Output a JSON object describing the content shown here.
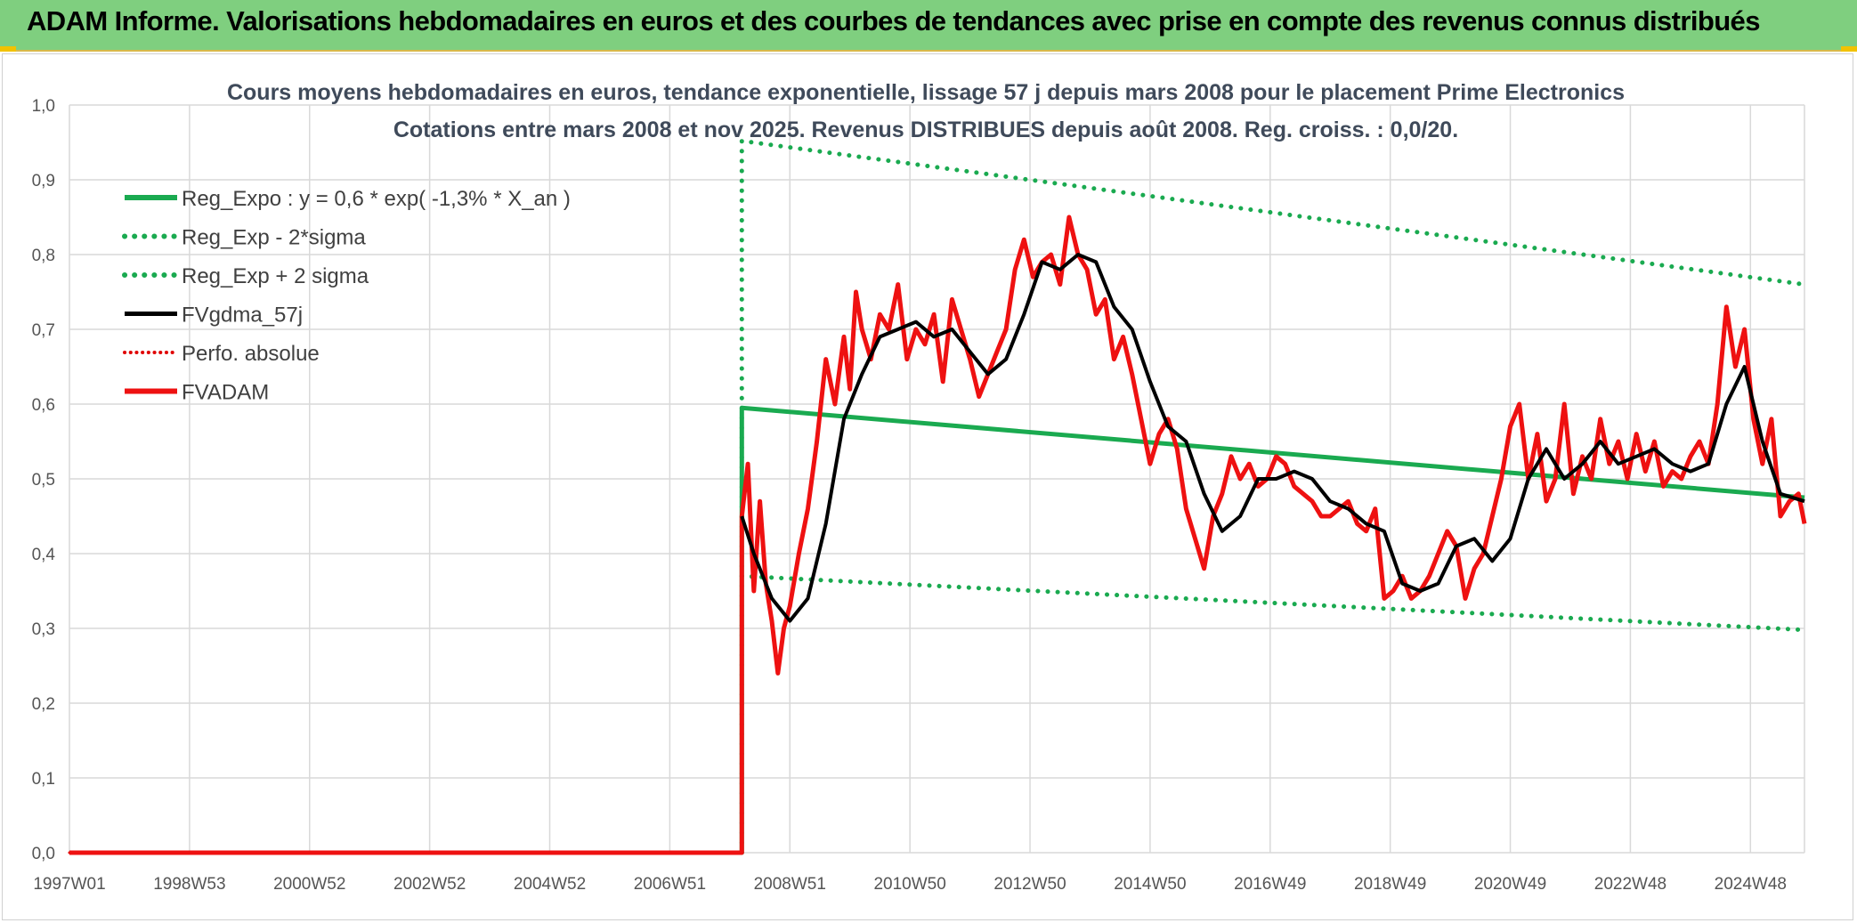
{
  "header": {
    "title": "ADAM Informe. Valorisations hebdomadaires en euros et des courbes de tendances avec prise en compte des revenus connus distribués"
  },
  "colors": {
    "banner": "#7fcf7f",
    "reg_expo": "#1aaa50",
    "reg_band": "#1aaa50",
    "fvgdma": "#000000",
    "perfo": "#e00000",
    "fvadam": "#ee1111",
    "grid": "#d9d9d9"
  },
  "chart_data": {
    "type": "line",
    "title": "Cours moyens hebdomadaires en euros, tendance exponentielle, lissage 57 j depuis mars 2008 pour le placement Prime Electronics",
    "subtitle": "Cotations entre mars 2008 et nov 2025. Revenus DISTRIBUES depuis août 2008. Reg. croiss. : 0,0/20.",
    "grid": true,
    "legend_placement": "top-left",
    "ylim": [
      0,
      1
    ],
    "yticks": [
      "0,0",
      "0,1",
      "0,2",
      "0,3",
      "0,4",
      "0,5",
      "0,6",
      "0,7",
      "0,8",
      "0,9",
      "1,0"
    ],
    "xlim": [
      1997.0,
      2025.9
    ],
    "xticks": [
      {
        "label": "1997W01",
        "x": 1997.0
      },
      {
        "label": "1998W53",
        "x": 1999.0
      },
      {
        "label": "2000W52",
        "x": 2001.0
      },
      {
        "label": "2002W52",
        "x": 2003.0
      },
      {
        "label": "2004W52",
        "x": 2005.0
      },
      {
        "label": "2006W51",
        "x": 2007.0
      },
      {
        "label": "2008W51",
        "x": 2009.0
      },
      {
        "label": "2010W50",
        "x": 2011.0
      },
      {
        "label": "2012W50",
        "x": 2013.0
      },
      {
        "label": "2014W50",
        "x": 2015.0
      },
      {
        "label": "2016W49",
        "x": 2017.0
      },
      {
        "label": "2018W49",
        "x": 2019.0
      },
      {
        "label": "2020W49",
        "x": 2021.0
      },
      {
        "label": "2022W48",
        "x": 2023.0
      },
      {
        "label": "2024W48",
        "x": 2025.0
      }
    ],
    "series": [
      {
        "name": "Reg_Expo : y = 0,6 * exp( -1,3% *  X_an )",
        "style": "solid",
        "color": "#1aaa50",
        "width": 5,
        "x": [
          1997.0,
          2008.2,
          2008.2,
          2025.9
        ],
        "y": [
          0.0,
          0.0,
          0.595,
          0.475
        ]
      },
      {
        "name": "Reg_Exp - 2*sigma",
        "style": "dotted",
        "color": "#1aaa50",
        "width": 5,
        "x": [
          2008.2,
          2025.9
        ],
        "y": [
          0.37,
          0.298
        ]
      },
      {
        "name": "Reg_Exp + 2 sigma",
        "style": "dotted",
        "color": "#1aaa50",
        "width": 5,
        "x": [
          2008.2,
          2008.2,
          2025.9
        ],
        "y": [
          0.0,
          0.952,
          0.76
        ]
      },
      {
        "name": "FVgdma_57j",
        "style": "solid",
        "color": "#000000",
        "width": 4,
        "x": [
          2008.2,
          2008.4,
          2008.7,
          2009.0,
          2009.3,
          2009.6,
          2009.9,
          2010.2,
          2010.5,
          2010.8,
          2011.1,
          2011.4,
          2011.7,
          2012.0,
          2012.3,
          2012.6,
          2012.9,
          2013.2,
          2013.5,
          2013.8,
          2014.1,
          2014.4,
          2014.7,
          2015.0,
          2015.3,
          2015.6,
          2015.9,
          2016.2,
          2016.5,
          2016.8,
          2017.1,
          2017.4,
          2017.7,
          2018.0,
          2018.3,
          2018.6,
          2018.9,
          2019.2,
          2019.5,
          2019.8,
          2020.1,
          2020.4,
          2020.7,
          2021.0,
          2021.3,
          2021.6,
          2021.9,
          2022.2,
          2022.5,
          2022.8,
          2023.1,
          2023.4,
          2023.7,
          2024.0,
          2024.3,
          2024.6,
          2024.9,
          2025.2,
          2025.5,
          2025.9
        ],
        "y": [
          0.45,
          0.4,
          0.34,
          0.31,
          0.34,
          0.44,
          0.58,
          0.64,
          0.69,
          0.7,
          0.71,
          0.69,
          0.7,
          0.67,
          0.64,
          0.66,
          0.72,
          0.79,
          0.78,
          0.8,
          0.79,
          0.73,
          0.7,
          0.63,
          0.57,
          0.55,
          0.48,
          0.43,
          0.45,
          0.5,
          0.5,
          0.51,
          0.5,
          0.47,
          0.46,
          0.44,
          0.43,
          0.36,
          0.35,
          0.36,
          0.41,
          0.42,
          0.39,
          0.42,
          0.5,
          0.54,
          0.5,
          0.52,
          0.55,
          0.52,
          0.53,
          0.54,
          0.52,
          0.51,
          0.52,
          0.6,
          0.65,
          0.55,
          0.48,
          0.47
        ]
      },
      {
        "name": "Perfo. absolue",
        "style": "dotted",
        "color": "#e00000",
        "width": 3,
        "x": [
          1997.0,
          2008.2
        ],
        "y": [
          0.0,
          0.0
        ]
      },
      {
        "name": "FVADAM",
        "style": "solid",
        "color": "#ee1111",
        "width": 5,
        "x": [
          1997.0,
          2008.2,
          2008.2,
          2008.3,
          2008.4,
          2008.5,
          2008.6,
          2008.7,
          2008.8,
          2008.9,
          2009.0,
          2009.15,
          2009.3,
          2009.45,
          2009.6,
          2009.75,
          2009.9,
          2010.0,
          2010.1,
          2010.2,
          2010.35,
          2010.5,
          2010.65,
          2010.8,
          2010.95,
          2011.1,
          2011.25,
          2011.4,
          2011.55,
          2011.7,
          2011.85,
          2012.0,
          2012.15,
          2012.3,
          2012.45,
          2012.6,
          2012.75,
          2012.9,
          2013.05,
          2013.2,
          2013.35,
          2013.5,
          2013.65,
          2013.8,
          2013.95,
          2014.1,
          2014.25,
          2014.4,
          2014.55,
          2014.7,
          2014.85,
          2015.0,
          2015.15,
          2015.3,
          2015.45,
          2015.6,
          2015.75,
          2015.9,
          2016.05,
          2016.2,
          2016.35,
          2016.5,
          2016.65,
          2016.8,
          2016.95,
          2017.1,
          2017.25,
          2017.4,
          2017.55,
          2017.7,
          2017.85,
          2018.0,
          2018.15,
          2018.3,
          2018.45,
          2018.6,
          2018.75,
          2018.9,
          2019.05,
          2019.2,
          2019.35,
          2019.5,
          2019.65,
          2019.8,
          2019.95,
          2020.1,
          2020.25,
          2020.4,
          2020.55,
          2020.7,
          2020.85,
          2021.0,
          2021.15,
          2021.3,
          2021.45,
          2021.6,
          2021.75,
          2021.9,
          2022.05,
          2022.2,
          2022.35,
          2022.5,
          2022.65,
          2022.8,
          2022.95,
          2023.1,
          2023.25,
          2023.4,
          2023.55,
          2023.7,
          2023.85,
          2024.0,
          2024.15,
          2024.3,
          2024.45,
          2024.6,
          2024.75,
          2024.9,
          2025.05,
          2025.2,
          2025.35,
          2025.5,
          2025.65,
          2025.8,
          2025.9
        ],
        "y": [
          0.0,
          0.0,
          0.45,
          0.52,
          0.35,
          0.47,
          0.36,
          0.31,
          0.24,
          0.3,
          0.33,
          0.4,
          0.46,
          0.55,
          0.66,
          0.6,
          0.69,
          0.62,
          0.75,
          0.7,
          0.66,
          0.72,
          0.7,
          0.76,
          0.66,
          0.7,
          0.68,
          0.72,
          0.63,
          0.74,
          0.7,
          0.66,
          0.61,
          0.64,
          0.67,
          0.7,
          0.78,
          0.82,
          0.77,
          0.79,
          0.8,
          0.76,
          0.85,
          0.8,
          0.78,
          0.72,
          0.74,
          0.66,
          0.69,
          0.64,
          0.58,
          0.52,
          0.56,
          0.58,
          0.54,
          0.46,
          0.42,
          0.38,
          0.45,
          0.48,
          0.53,
          0.5,
          0.52,
          0.49,
          0.5,
          0.53,
          0.52,
          0.49,
          0.48,
          0.47,
          0.45,
          0.45,
          0.46,
          0.47,
          0.44,
          0.43,
          0.46,
          0.34,
          0.35,
          0.37,
          0.34,
          0.35,
          0.37,
          0.4,
          0.43,
          0.41,
          0.34,
          0.38,
          0.4,
          0.45,
          0.5,
          0.57,
          0.6,
          0.5,
          0.56,
          0.47,
          0.5,
          0.6,
          0.48,
          0.53,
          0.5,
          0.58,
          0.52,
          0.55,
          0.5,
          0.56,
          0.51,
          0.55,
          0.49,
          0.51,
          0.5,
          0.53,
          0.55,
          0.52,
          0.6,
          0.73,
          0.65,
          0.7,
          0.58,
          0.52,
          0.58,
          0.45,
          0.47,
          0.48,
          0.44
        ]
      }
    ]
  }
}
